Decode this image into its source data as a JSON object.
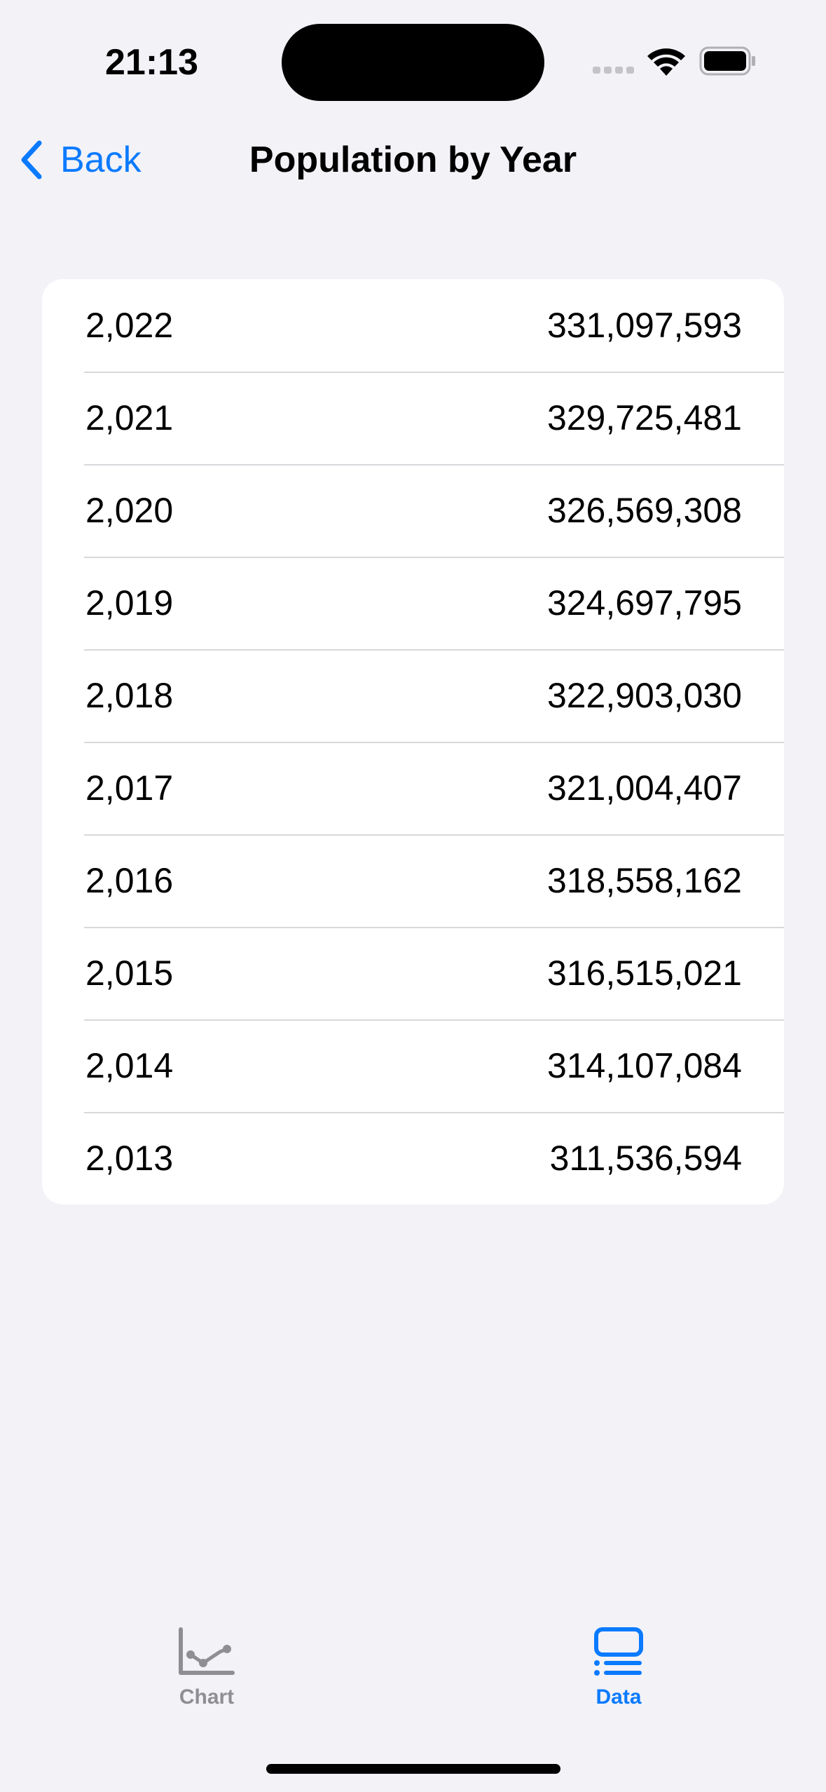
{
  "status_bar": {
    "time": "21:13"
  },
  "nav": {
    "back_label": "Back",
    "title": "Population by Year"
  },
  "table": {
    "rows": [
      {
        "year": "2,022",
        "population": "331,097,593"
      },
      {
        "year": "2,021",
        "population": "329,725,481"
      },
      {
        "year": "2,020",
        "population": "326,569,308"
      },
      {
        "year": "2,019",
        "population": "324,697,795"
      },
      {
        "year": "2,018",
        "population": "322,903,030"
      },
      {
        "year": "2,017",
        "population": "321,004,407"
      },
      {
        "year": "2,016",
        "population": "318,558,162"
      },
      {
        "year": "2,015",
        "population": "316,515,021"
      },
      {
        "year": "2,014",
        "population": "314,107,084"
      },
      {
        "year": "2,013",
        "population": "311,536,594"
      }
    ]
  },
  "tabs": [
    {
      "label": "Chart",
      "icon": "chart-icon",
      "selected": false
    },
    {
      "label": "Data",
      "icon": "list-icon",
      "selected": true
    }
  ],
  "colors": {
    "accent": "#0a7aff",
    "background": "#f2f2f7",
    "inactive_tab": "#8e8e93"
  }
}
